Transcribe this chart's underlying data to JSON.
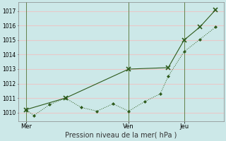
{
  "xlabel": "Pression niveau de la mer( hPa )",
  "bg_color": "#cce8e8",
  "plot_bg_color": "#cce8e8",
  "grid_color": "#e8c8c8",
  "line_color": "#2d5a1b",
  "ylim": [
    1009.4,
    1017.6
  ],
  "yticks": [
    1010,
    1011,
    1012,
    1013,
    1014,
    1015,
    1016,
    1017
  ],
  "series1_x": [
    0,
    0.5,
    1.5,
    2.5,
    3.5,
    4.5,
    5.5,
    6.5,
    7.5,
    8.5,
    9.0,
    10.0,
    11.0,
    12.0
  ],
  "series1_y": [
    1010.2,
    1009.8,
    1010.55,
    1011.0,
    1010.35,
    1010.1,
    1010.6,
    1010.1,
    1010.75,
    1011.3,
    1012.5,
    1014.2,
    1015.05,
    1015.9
  ],
  "series2_x": [
    0,
    2.5,
    6.5,
    9.0,
    10.0,
    11.0,
    12.0
  ],
  "series2_y": [
    1010.2,
    1011.0,
    1013.0,
    1013.1,
    1015.0,
    1015.9,
    1017.1
  ],
  "vline_positions": [
    0,
    6.5,
    10.0
  ],
  "xtick_positions": [
    0,
    6.5,
    10.0
  ],
  "xtick_labels": [
    "Mer",
    "Ven",
    "Jeu"
  ],
  "xlim": [
    -0.5,
    12.5
  ]
}
